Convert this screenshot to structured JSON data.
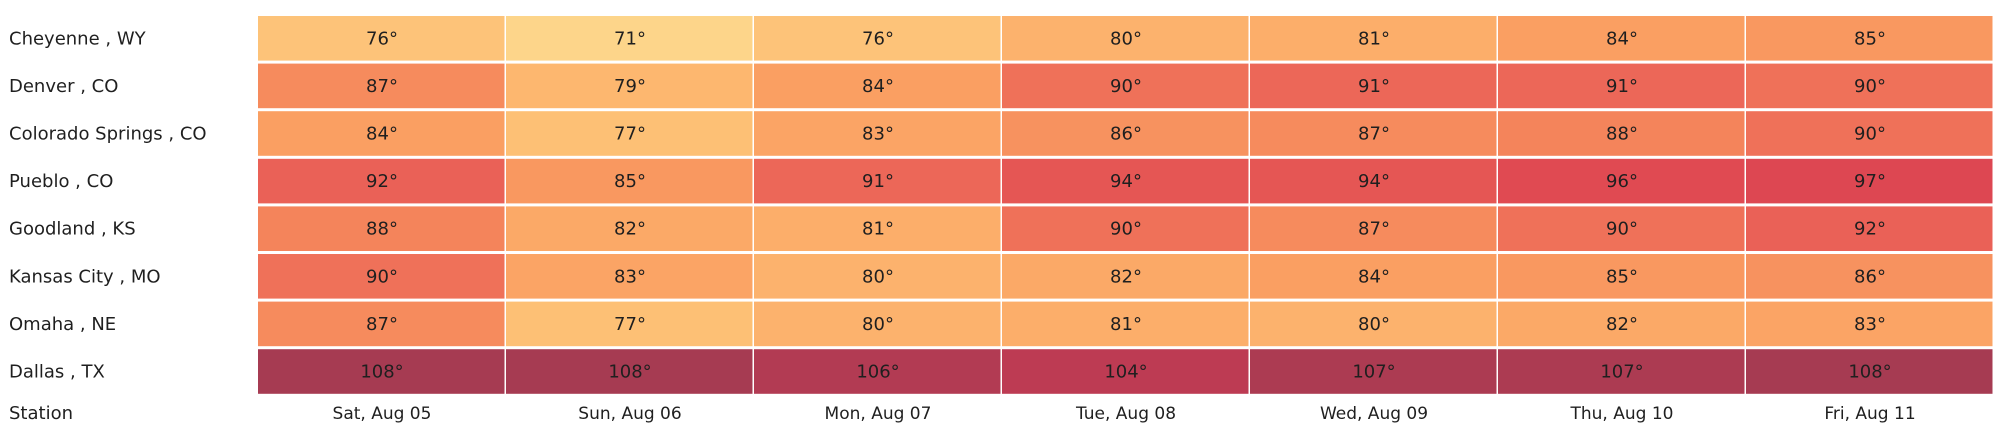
{
  "chart_data": {
    "type": "heatmap",
    "title": "",
    "xlabel": "",
    "ylabel": "Station",
    "value_suffix": "°",
    "columns": [
      "Sat, Aug 05",
      "Sun, Aug 06",
      "Mon, Aug 07",
      "Tue, Aug 08",
      "Wed, Aug 09",
      "Thu, Aug 10",
      "Fri, Aug 11"
    ],
    "rows": [
      {
        "station": "Cheyenne , WY",
        "values": [
          76,
          71,
          76,
          80,
          81,
          84,
          85
        ]
      },
      {
        "station": "Denver , CO",
        "values": [
          87,
          79,
          84,
          90,
          91,
          91,
          90
        ]
      },
      {
        "station": "Colorado Springs , CO",
        "values": [
          84,
          77,
          83,
          86,
          87,
          88,
          90
        ]
      },
      {
        "station": "Pueblo , CO",
        "values": [
          92,
          85,
          91,
          94,
          94,
          96,
          97
        ]
      },
      {
        "station": "Goodland , KS",
        "values": [
          88,
          82,
          81,
          90,
          87,
          90,
          92
        ]
      },
      {
        "station": "Kansas City , MO",
        "values": [
          90,
          83,
          80,
          82,
          84,
          85,
          86
        ]
      },
      {
        "station": "Omaha , NE",
        "values": [
          87,
          77,
          80,
          81,
          80,
          82,
          83
        ]
      },
      {
        "station": "Dallas , TX",
        "values": [
          108,
          108,
          106,
          104,
          107,
          107,
          108
        ]
      }
    ],
    "color_scale": [
      {
        "value": 71,
        "color": "#fdd58a"
      },
      {
        "value": 78,
        "color": "#fdbc72"
      },
      {
        "value": 84,
        "color": "#fa9f62"
      },
      {
        "value": 88,
        "color": "#f4845b"
      },
      {
        "value": 91,
        "color": "#ec6758"
      },
      {
        "value": 96,
        "color": "#e04a52"
      },
      {
        "value": 100,
        "color": "#d43c50"
      },
      {
        "value": 104,
        "color": "#bd3b53"
      },
      {
        "value": 108,
        "color": "#a63b52"
      }
    ],
    "grid": false,
    "legend": "none"
  }
}
